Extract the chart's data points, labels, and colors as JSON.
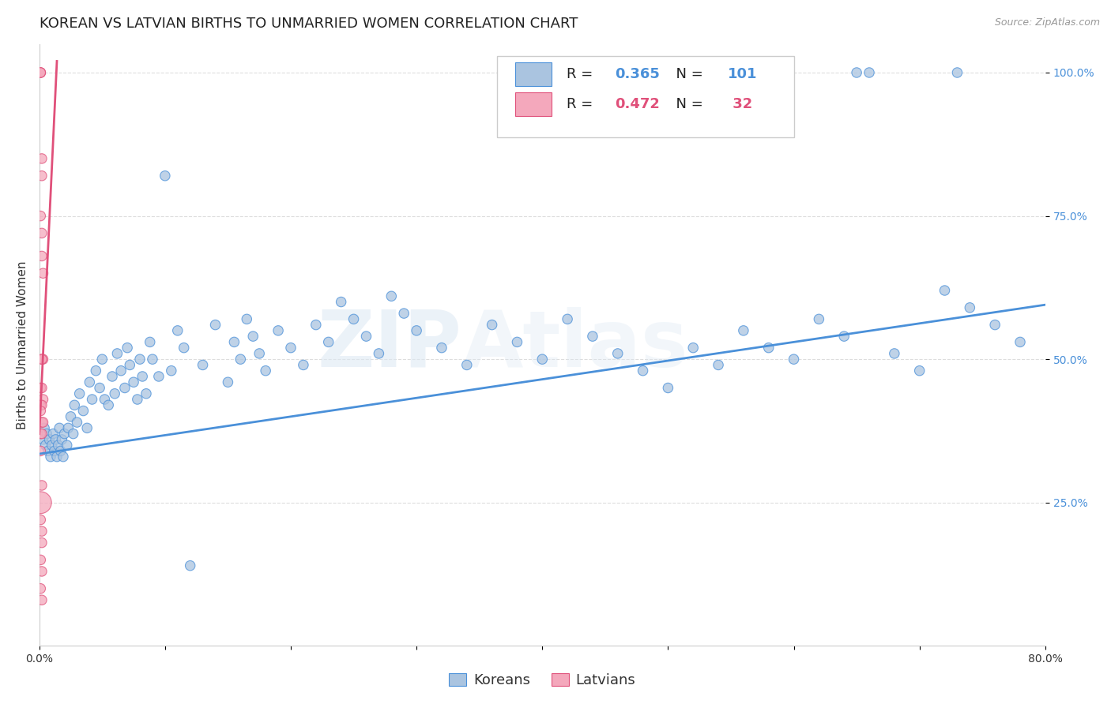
{
  "title": "KOREAN VS LATVIAN BIRTHS TO UNMARRIED WOMEN CORRELATION CHART",
  "source": "Source: ZipAtlas.com",
  "ylabel": "Births to Unmarried Women",
  "watermark": "ZIPAtlas",
  "xlim": [
    0.0,
    0.8
  ],
  "ylim": [
    0.0,
    1.05
  ],
  "korean_R": "0.365",
  "korean_N": "101",
  "latvian_R": "0.472",
  "latvian_N": " 32",
  "korean_color": "#aac4e0",
  "latvian_color": "#f4a8bc",
  "korean_line_color": "#4a90d9",
  "latvian_line_color": "#e0507a",
  "legend_korean_label": "Koreans",
  "legend_latvian_label": "Latvians",
  "korean_scatter_x": [
    0.003,
    0.004,
    0.005,
    0.006,
    0.007,
    0.008,
    0.009,
    0.01,
    0.011,
    0.012,
    0.013,
    0.014,
    0.015,
    0.016,
    0.017,
    0.018,
    0.019,
    0.02,
    0.022,
    0.023,
    0.025,
    0.027,
    0.028,
    0.03,
    0.032,
    0.035,
    0.038,
    0.04,
    0.042,
    0.045,
    0.048,
    0.05,
    0.052,
    0.055,
    0.058,
    0.06,
    0.062,
    0.065,
    0.068,
    0.07,
    0.072,
    0.075,
    0.078,
    0.08,
    0.082,
    0.085,
    0.088,
    0.09,
    0.095,
    0.1,
    0.105,
    0.11,
    0.115,
    0.12,
    0.13,
    0.14,
    0.15,
    0.155,
    0.16,
    0.165,
    0.17,
    0.175,
    0.18,
    0.19,
    0.2,
    0.21,
    0.22,
    0.23,
    0.24,
    0.25,
    0.26,
    0.27,
    0.28,
    0.29,
    0.3,
    0.32,
    0.34,
    0.36,
    0.38,
    0.4,
    0.42,
    0.44,
    0.46,
    0.48,
    0.5,
    0.52,
    0.54,
    0.56,
    0.58,
    0.6,
    0.62,
    0.64,
    0.65,
    0.66,
    0.68,
    0.7,
    0.72,
    0.73,
    0.74,
    0.76,
    0.78
  ],
  "korean_scatter_y": [
    0.36,
    0.38,
    0.35,
    0.37,
    0.34,
    0.36,
    0.33,
    0.35,
    0.37,
    0.34,
    0.36,
    0.33,
    0.35,
    0.38,
    0.34,
    0.36,
    0.33,
    0.37,
    0.35,
    0.38,
    0.4,
    0.37,
    0.42,
    0.39,
    0.44,
    0.41,
    0.38,
    0.46,
    0.43,
    0.48,
    0.45,
    0.5,
    0.43,
    0.42,
    0.47,
    0.44,
    0.51,
    0.48,
    0.45,
    0.52,
    0.49,
    0.46,
    0.43,
    0.5,
    0.47,
    0.44,
    0.53,
    0.5,
    0.47,
    0.82,
    0.48,
    0.55,
    0.52,
    0.14,
    0.49,
    0.56,
    0.46,
    0.53,
    0.5,
    0.57,
    0.54,
    0.51,
    0.48,
    0.55,
    0.52,
    0.49,
    0.56,
    0.53,
    0.6,
    0.57,
    0.54,
    0.51,
    0.61,
    0.58,
    0.55,
    0.52,
    0.49,
    0.56,
    0.53,
    0.5,
    0.57,
    0.54,
    0.51,
    0.48,
    0.45,
    0.52,
    0.49,
    0.55,
    0.52,
    0.5,
    0.57,
    0.54,
    1.0,
    1.0,
    0.51,
    0.48,
    0.62,
    1.0,
    0.59,
    0.56,
    0.53
  ],
  "korean_scatter_size": [
    80,
    80,
    80,
    80,
    80,
    80,
    80,
    80,
    80,
    80,
    80,
    80,
    80,
    80,
    80,
    80,
    80,
    80,
    80,
    80,
    80,
    80,
    80,
    80,
    80,
    80,
    80,
    80,
    80,
    80,
    80,
    80,
    80,
    80,
    80,
    80,
    80,
    80,
    80,
    80,
    80,
    80,
    80,
    80,
    80,
    80,
    80,
    80,
    80,
    80,
    80,
    80,
    80,
    80,
    80,
    80,
    80,
    80,
    80,
    80,
    80,
    80,
    80,
    80,
    80,
    80,
    80,
    80,
    80,
    80,
    80,
    80,
    80,
    80,
    80,
    80,
    80,
    80,
    80,
    80,
    80,
    80,
    80,
    80,
    80,
    80,
    80,
    80,
    80,
    80,
    80,
    80,
    80,
    80,
    80,
    80,
    80,
    80,
    80,
    80,
    80
  ],
  "latvian_scatter_x": [
    0.001,
    0.001,
    0.001,
    0.002,
    0.002,
    0.001,
    0.002,
    0.002,
    0.003,
    0.002,
    0.003,
    0.002,
    0.001,
    0.002,
    0.003,
    0.001,
    0.002,
    0.001,
    0.002,
    0.003,
    0.001,
    0.002,
    0.001,
    0.002,
    0.001,
    0.002,
    0.001,
    0.002,
    0.001,
    0.002,
    0.001,
    0.002
  ],
  "latvian_scatter_y": [
    1.0,
    1.0,
    1.0,
    0.85,
    0.82,
    0.75,
    0.72,
    0.68,
    0.65,
    0.5,
    0.5,
    0.5,
    0.45,
    0.45,
    0.43,
    0.42,
    0.42,
    0.41,
    0.39,
    0.39,
    0.37,
    0.37,
    0.34,
    0.28,
    0.22,
    0.2,
    0.15,
    0.13,
    0.1,
    0.08,
    0.25,
    0.18
  ],
  "latvian_scatter_size": [
    80,
    80,
    80,
    80,
    80,
    80,
    80,
    80,
    80,
    80,
    80,
    80,
    80,
    80,
    80,
    80,
    80,
    80,
    80,
    80,
    80,
    80,
    80,
    80,
    80,
    80,
    80,
    80,
    80,
    80,
    400,
    80
  ],
  "korean_line_x": [
    0.0,
    0.8
  ],
  "korean_line_y": [
    0.335,
    0.595
  ],
  "latvian_line_x": [
    0.0,
    0.014
  ],
  "latvian_line_y": [
    0.37,
    1.02
  ],
  "grid_color": "#dddddd",
  "background_color": "#ffffff",
  "title_fontsize": 13,
  "label_fontsize": 11,
  "tick_fontsize": 10,
  "legend_fontsize": 13
}
